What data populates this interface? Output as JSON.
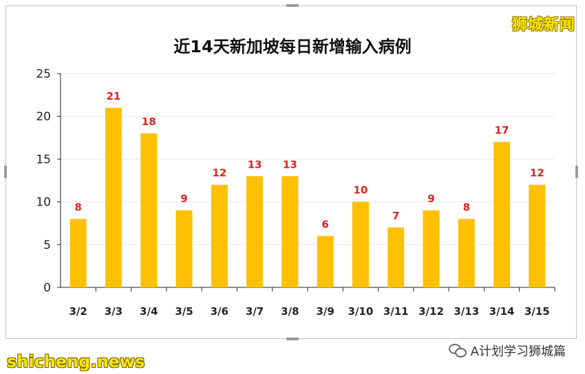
{
  "watermark_top": "狮城新闻",
  "watermark_bottom": "shicheng.news",
  "source_text": "A计划学习狮城篇",
  "colors": {
    "bar": "#FFC000",
    "label": "#E02020",
    "axis": "#222222",
    "grid": "#E8E8E8"
  },
  "chart_data": {
    "type": "bar",
    "title": "近14天新加坡每日新增输入病例",
    "categories": [
      "3/2",
      "3/3",
      "3/4",
      "3/5",
      "3/6",
      "3/7",
      "3/8",
      "3/9",
      "3/10",
      "3/11",
      "3/12",
      "3/13",
      "3/14",
      "3/15"
    ],
    "values": [
      8,
      21,
      18,
      9,
      12,
      13,
      13,
      6,
      10,
      7,
      9,
      8,
      17,
      12
    ],
    "ylim": [
      0,
      25
    ],
    "yticks": [
      0,
      5,
      10,
      15,
      20,
      25
    ],
    "grid": true,
    "data_labels": true
  }
}
